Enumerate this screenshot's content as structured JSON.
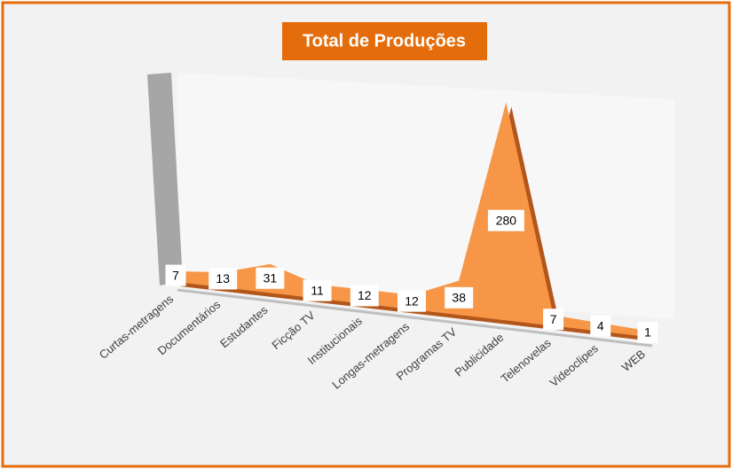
{
  "chart_data": {
    "type": "area",
    "title": "Total de Produções",
    "categories": [
      "Curtas-metragens",
      "Documentários",
      "Estudantes",
      "Ficção TV",
      "Institucionais",
      "Longas-metragens",
      "Programas TV",
      "Publicidade",
      "Telenovelas",
      "Videoclipes",
      "WEB"
    ],
    "values": [
      7,
      13,
      31,
      11,
      12,
      12,
      38,
      280,
      7,
      4,
      1
    ],
    "color": "#f79646"
  }
}
